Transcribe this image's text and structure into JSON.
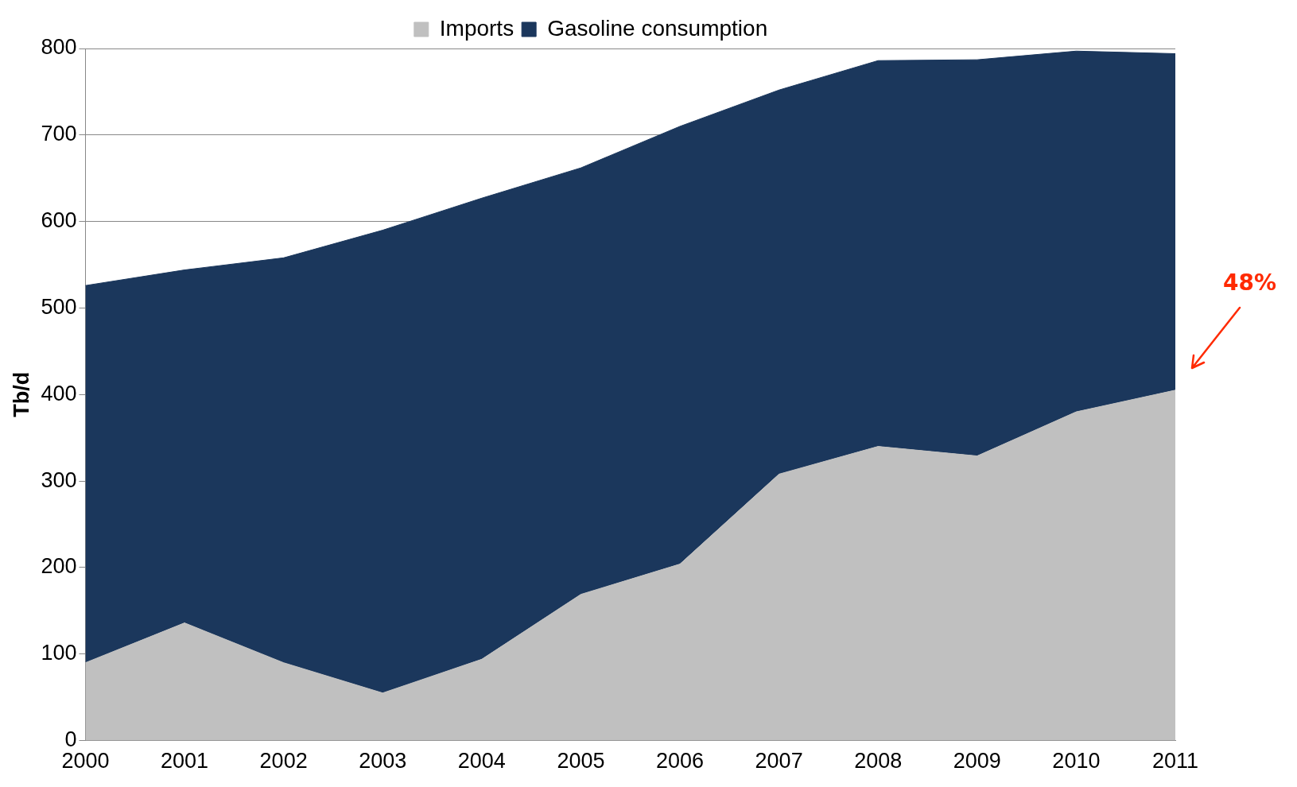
{
  "chart_data": {
    "type": "area",
    "ylabel": "Tb/d",
    "categories": [
      "2000",
      "2001",
      "2002",
      "2003",
      "2004",
      "2005",
      "2006",
      "2007",
      "2008",
      "2009",
      "2010",
      "2011"
    ],
    "series": [
      {
        "name": "Imports",
        "color": "#c0c0c0",
        "values": [
          90,
          136,
          90,
          55,
          94,
          169,
          204,
          308,
          340,
          329,
          380,
          405
        ]
      },
      {
        "name": "Gasoline consumption",
        "color": "#1b375c",
        "values": [
          526,
          544,
          558,
          590,
          627,
          662,
          710,
          752,
          786,
          787,
          797,
          794
        ]
      }
    ],
    "ylim": [
      0,
      800
    ],
    "yticks": [
      0,
      100,
      200,
      300,
      400,
      500,
      600,
      700,
      800
    ],
    "grid": "y",
    "legend": "top",
    "annotations": [
      "48%"
    ]
  }
}
